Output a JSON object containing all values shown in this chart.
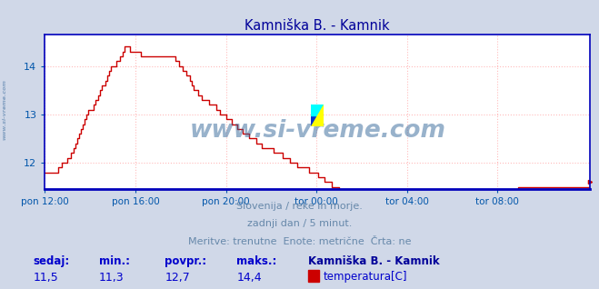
{
  "title": "Kamniška B. - Kamnik",
  "title_color": "#000099",
  "bg_color": "#d0d8e8",
  "plot_bg_color": "#ffffff",
  "line_color": "#cc0000",
  "line_width": 1.0,
  "ylabel_color": "#0055aa",
  "xlabel_color": "#0055aa",
  "grid_color": "#ffbbbb",
  "grid_linestyle": ":",
  "axis_color": "#0000bb",
  "tick_color": "#0055aa",
  "ylim": [
    11.45,
    14.65
  ],
  "yticks": [
    12,
    13,
    14
  ],
  "xtick_labels": [
    "pon 12:00",
    "pon 16:00",
    "pon 20:00",
    "tor 00:00",
    "tor 04:00",
    "tor 08:00"
  ],
  "watermark": "www.si-vreme.com",
  "watermark_color": "#336699",
  "watermark_alpha": 0.5,
  "side_text": "www.si-vreme.com",
  "side_text_color": "#336699",
  "side_text_alpha": 0.5,
  "footer_lines": [
    "Slovenija / reke in morje.",
    "zadnji dan / 5 minut.",
    "Meritve: trenutne  Enote: metrične  Črta: ne"
  ],
  "footer_color": "#6688aa",
  "footer_fontsize": 8.0,
  "stats_labels": [
    "sedaj:",
    "min.:",
    "povpr.:",
    "maks.:"
  ],
  "stats_values": [
    "11,5",
    "11,3",
    "12,7",
    "14,4"
  ],
  "stats_color": "#0000cc",
  "stats_label_fontsize": 8.5,
  "stats_value_fontsize": 9,
  "legend_label": "temperatura[C]",
  "legend_box_color": "#cc0000",
  "series_name": "Kamniška B. - Kamnik",
  "series_name_color": "#000099",
  "n_points": 288,
  "temperature_profile": [
    11.8,
    11.8,
    11.8,
    11.8,
    11.8,
    11.8,
    11.8,
    11.9,
    11.9,
    12.0,
    12.0,
    12.0,
    12.1,
    12.1,
    12.2,
    12.3,
    12.4,
    12.5,
    12.6,
    12.7,
    12.8,
    12.9,
    13.0,
    13.1,
    13.1,
    13.1,
    13.2,
    13.3,
    13.4,
    13.5,
    13.6,
    13.6,
    13.7,
    13.8,
    13.9,
    14.0,
    14.0,
    14.0,
    14.1,
    14.1,
    14.2,
    14.3,
    14.4,
    14.4,
    14.4,
    14.3,
    14.3,
    14.3,
    14.3,
    14.3,
    14.3,
    14.2,
    14.2,
    14.2,
    14.2,
    14.2,
    14.2,
    14.2,
    14.2,
    14.2,
    14.2,
    14.2,
    14.2,
    14.2,
    14.2,
    14.2,
    14.2,
    14.2,
    14.2,
    14.1,
    14.1,
    14.0,
    14.0,
    13.9,
    13.9,
    13.8,
    13.8,
    13.7,
    13.6,
    13.5,
    13.5,
    13.4,
    13.4,
    13.3,
    13.3,
    13.3,
    13.3,
    13.2,
    13.2,
    13.2,
    13.2,
    13.1,
    13.1,
    13.0,
    13.0,
    13.0,
    12.9,
    12.9,
    12.9,
    12.8,
    12.8,
    12.8,
    12.7,
    12.7,
    12.7,
    12.6,
    12.6,
    12.6,
    12.5,
    12.5,
    12.5,
    12.5,
    12.4,
    12.4,
    12.4,
    12.3,
    12.3,
    12.3,
    12.3,
    12.3,
    12.3,
    12.2,
    12.2,
    12.2,
    12.2,
    12.2,
    12.1,
    12.1,
    12.1,
    12.1,
    12.0,
    12.0,
    12.0,
    12.0,
    11.9,
    11.9,
    11.9,
    11.9,
    11.9,
    11.9,
    11.8,
    11.8,
    11.8,
    11.8,
    11.8,
    11.7,
    11.7,
    11.7,
    11.6,
    11.6,
    11.6,
    11.6,
    11.5,
    11.5,
    11.5,
    11.5,
    11.4,
    11.4,
    11.4,
    11.4,
    11.4,
    11.4,
    11.4,
    11.4,
    11.3,
    11.3,
    11.3,
    11.3,
    11.3,
    11.3,
    11.3,
    11.3,
    11.3,
    11.3,
    11.3,
    11.3,
    11.3,
    11.3,
    11.3,
    11.3,
    11.3,
    11.3,
    11.3,
    11.3,
    11.3,
    11.3,
    11.3,
    11.3,
    11.3,
    11.3,
    11.3,
    11.3,
    11.3,
    11.3,
    11.3,
    11.3,
    11.3,
    11.3,
    11.3,
    11.3,
    11.3,
    11.3,
    11.3,
    11.3,
    11.3,
    11.3,
    11.3,
    11.3,
    11.3,
    11.3,
    11.3,
    11.3,
    11.3,
    11.3,
    11.3,
    11.3,
    11.3,
    11.3,
    11.3,
    11.3,
    11.3,
    11.3,
    11.3,
    11.3,
    11.3,
    11.3,
    11.3,
    11.3,
    11.3,
    11.3,
    11.3,
    11.3,
    11.3,
    11.3,
    11.3,
    11.3,
    11.3,
    11.3,
    11.3,
    11.3,
    11.3,
    11.3,
    11.3,
    11.3,
    11.3,
    11.3,
    11.4,
    11.4,
    11.4,
    11.4,
    11.4,
    11.5,
    11.5,
    11.5,
    11.5,
    11.5,
    11.5,
    11.5,
    11.5,
    11.5,
    11.5,
    11.5,
    11.5,
    11.5,
    11.5,
    11.5,
    11.5,
    11.5,
    11.5,
    11.5,
    11.5,
    11.5,
    11.5,
    11.5,
    11.5,
    11.5,
    11.5,
    11.5,
    11.5,
    11.5,
    11.5,
    11.5,
    11.5,
    11.5,
    11.5,
    11.5,
    11.5,
    11.5,
    11.5,
    11.6
  ]
}
